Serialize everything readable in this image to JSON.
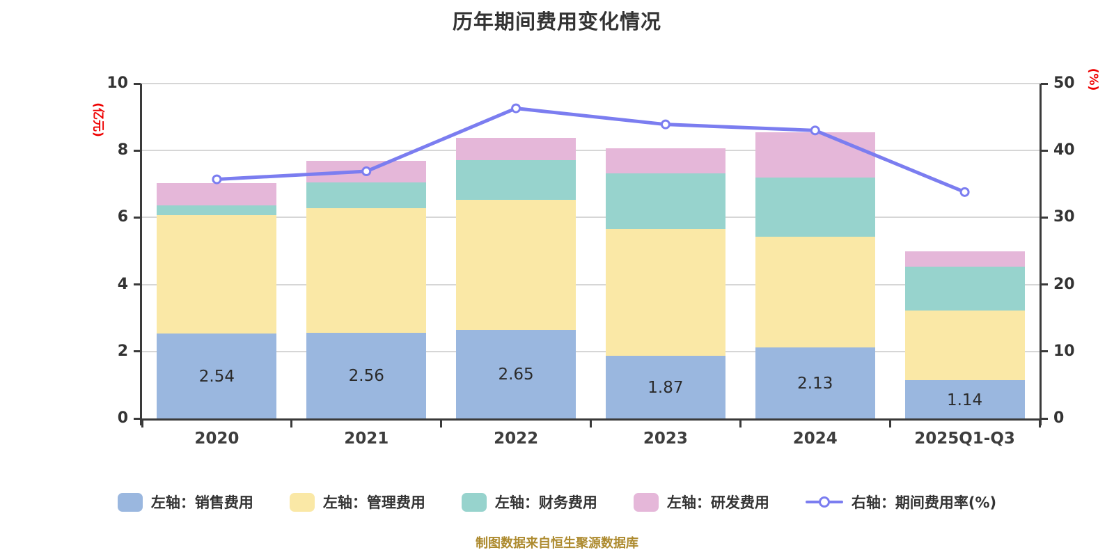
{
  "title": "历年期间费用变化情况",
  "footer": "制图数据来自恒生聚源数据库",
  "colors": {
    "axis": "#3a3a3a",
    "grid": "#d6d6d6",
    "text": "#333333",
    "axis_unit": "#ee0000",
    "footer": "#ad8a2e"
  },
  "chart_data": {
    "type": "stacked-bar+line",
    "title": "历年期间费用变化情况",
    "categories": [
      "2020",
      "2021",
      "2022",
      "2023",
      "2024",
      "2025Q1-Q3"
    ],
    "series": [
      {
        "key": "sales",
        "name": "左轴：销售费用",
        "type": "bar",
        "axis": "left",
        "color": "#9ab7df",
        "values": [
          2.54,
          2.56,
          2.65,
          1.87,
          2.13,
          1.14
        ]
      },
      {
        "key": "admin",
        "name": "左轴：管理费用",
        "type": "bar",
        "axis": "left",
        "color": "#fae8a6",
        "values": [
          3.53,
          3.72,
          3.88,
          3.78,
          3.3,
          2.08
        ]
      },
      {
        "key": "finance",
        "name": "左轴：财务费用",
        "type": "bar",
        "axis": "left",
        "color": "#97d3cd",
        "values": [
          0.29,
          0.77,
          1.18,
          1.67,
          1.76,
          1.31
        ]
      },
      {
        "key": "rnd",
        "name": "左轴：研发费用",
        "type": "bar",
        "axis": "left",
        "color": "#e5b7d9",
        "values": [
          0.67,
          0.64,
          0.67,
          0.75,
          1.35,
          0.46
        ]
      },
      {
        "key": "expense-ratio",
        "name": "右轴：期间费用率(%)",
        "type": "line",
        "axis": "right",
        "color": "#7b7df0",
        "values": [
          35.7,
          36.9,
          46.3,
          43.9,
          43.0,
          33.8
        ]
      }
    ],
    "bar_value_labels": [
      "2.54",
      "2.56",
      "2.65",
      "1.87",
      "2.13",
      "1.14"
    ],
    "left_axis": {
      "label": "(亿元)",
      "min": 0,
      "max": 10,
      "ticks": [
        0,
        2,
        4,
        6,
        8,
        10
      ]
    },
    "right_axis": {
      "label": "(%)",
      "min": 0,
      "max": 50,
      "ticks": [
        0,
        10,
        20,
        30,
        40,
        50
      ]
    },
    "grid": true,
    "legend_position": "bottom",
    "bar_width_ratio": 0.8
  }
}
